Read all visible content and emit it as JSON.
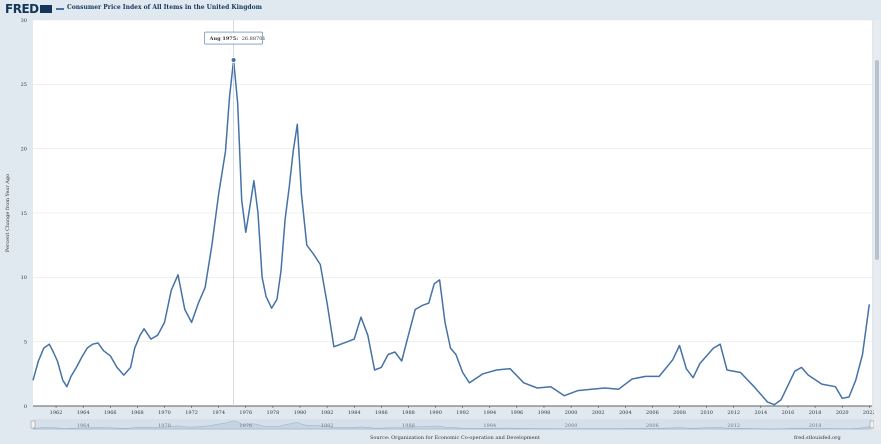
{
  "header": {
    "logo_text": "FRED",
    "series_title": "Consumer Price Index of All Items in the United Kingdom"
  },
  "tooltip": {
    "date": "Aug 1975:",
    "value": "26.88701"
  },
  "footer": {
    "source": "Source: Organization for Economic Co-operation and Development",
    "credit": "fred.stlouisfed.org"
  },
  "colors": {
    "line": "#4572a7",
    "background": "#e1e9f0",
    "plot_background": "#ffffff",
    "navigator_fill": "#c5d3e3"
  },
  "chart_data": {
    "type": "line",
    "title": "Consumer Price Index of All Items in the United Kingdom",
    "xlabel": "",
    "ylabel": "Percent Change from Year Ago",
    "ylim": [
      0,
      30
    ],
    "yticks": [
      0,
      5,
      10,
      15,
      20,
      25,
      30
    ],
    "xlim": [
      1960.8,
      2022.7
    ],
    "xticks": [
      "1962",
      "1964",
      "1966",
      "1968",
      "1970",
      "1972",
      "1974",
      "1976",
      "1978",
      "1980",
      "1982",
      "1984",
      "1986",
      "1988",
      "1990",
      "1992",
      "1994",
      "1996",
      "1998",
      "2000",
      "2002",
      "2004",
      "2006",
      "2008",
      "2010",
      "2012",
      "2014",
      "2016",
      "2018",
      "2020",
      "2022"
    ],
    "grid": true,
    "highlight": {
      "x": 1975.6,
      "y": 26.88701,
      "label": "Aug 1975"
    },
    "series": [
      {
        "x": [
          1960.8,
          1961.2,
          1961.6,
          1962.0,
          1962.3,
          1962.6,
          1963.0,
          1963.3,
          1963.6,
          1964.0,
          1964.4,
          1964.8,
          1965.2,
          1965.6,
          1966.0,
          1966.5,
          1967.0,
          1967.5,
          1968.0,
          1968.3,
          1968.7,
          1969.0,
          1969.5,
          1970.0,
          1970.5,
          1971.0,
          1971.5,
          1972.0,
          1972.5,
          1973.0,
          1973.5,
          1974.0,
          1974.5,
          1975.0,
          1975.3,
          1975.6,
          1975.9,
          1976.2,
          1976.5,
          1976.8,
          1977.1,
          1977.4,
          1977.7,
          1978.0,
          1978.4,
          1978.8,
          1979.1,
          1979.4,
          1979.7,
          1980.0,
          1980.3,
          1980.6,
          1981.0,
          1981.5,
          1982.0,
          1982.5,
          1983.0,
          1983.5,
          1984.0,
          1984.5,
          1985.0,
          1985.5,
          1986.0,
          1986.5,
          1987.0,
          1987.5,
          1988.0,
          1988.5,
          1989.0,
          1989.5,
          1990.0,
          1990.4,
          1990.8,
          1991.2,
          1991.6,
          1992.0,
          1992.5,
          1993.0,
          1994.0,
          1995.0,
          1996.0,
          1997.0,
          1998.0,
          1999.0,
          2000.0,
          2001.0,
          2002.0,
          2003.0,
          2004.0,
          2005.0,
          2006.0,
          2007.0,
          2008.0,
          2008.5,
          2009.0,
          2009.5,
          2010.0,
          2011.0,
          2011.5,
          2012.0,
          2013.0,
          2014.0,
          2015.0,
          2015.5,
          2016.0,
          2017.0,
          2017.5,
          2018.0,
          2019.0,
          2020.0,
          2020.5,
          2021.0,
          2021.5,
          2022.0,
          2022.5
        ],
        "y": [
          2.0,
          3.5,
          4.5,
          4.8,
          4.2,
          3.5,
          2.0,
          1.5,
          2.3,
          3.0,
          3.8,
          4.5,
          4.8,
          4.9,
          4.3,
          3.9,
          3.0,
          2.4,
          3.0,
          4.5,
          5.5,
          6.0,
          5.2,
          5.5,
          6.5,
          9.0,
          10.2,
          7.5,
          6.5,
          8.0,
          9.2,
          12.5,
          16.5,
          19.8,
          24.0,
          26.9,
          23.5,
          16.0,
          13.5,
          15.5,
          17.5,
          15.0,
          10.0,
          8.5,
          7.6,
          8.3,
          10.5,
          14.5,
          17.0,
          19.8,
          21.9,
          16.5,
          12.5,
          11.8,
          11.0,
          8.0,
          4.6,
          4.8,
          5.0,
          5.2,
          6.9,
          5.5,
          2.8,
          3.0,
          4.0,
          4.2,
          3.5,
          5.5,
          7.5,
          7.8,
          8.0,
          9.5,
          9.8,
          6.5,
          4.5,
          4.0,
          2.6,
          1.8,
          2.5,
          2.8,
          2.9,
          1.8,
          1.4,
          1.5,
          0.8,
          1.2,
          1.3,
          1.4,
          1.3,
          2.1,
          2.3,
          2.3,
          3.6,
          4.7,
          2.9,
          2.2,
          3.3,
          4.5,
          4.8,
          2.8,
          2.6,
          1.5,
          0.3,
          0.1,
          0.5,
          2.7,
          3.0,
          2.4,
          1.7,
          1.5,
          0.6,
          0.7,
          2.0,
          4.0,
          7.9
        ],
        "color": "#4572a7"
      }
    ]
  }
}
